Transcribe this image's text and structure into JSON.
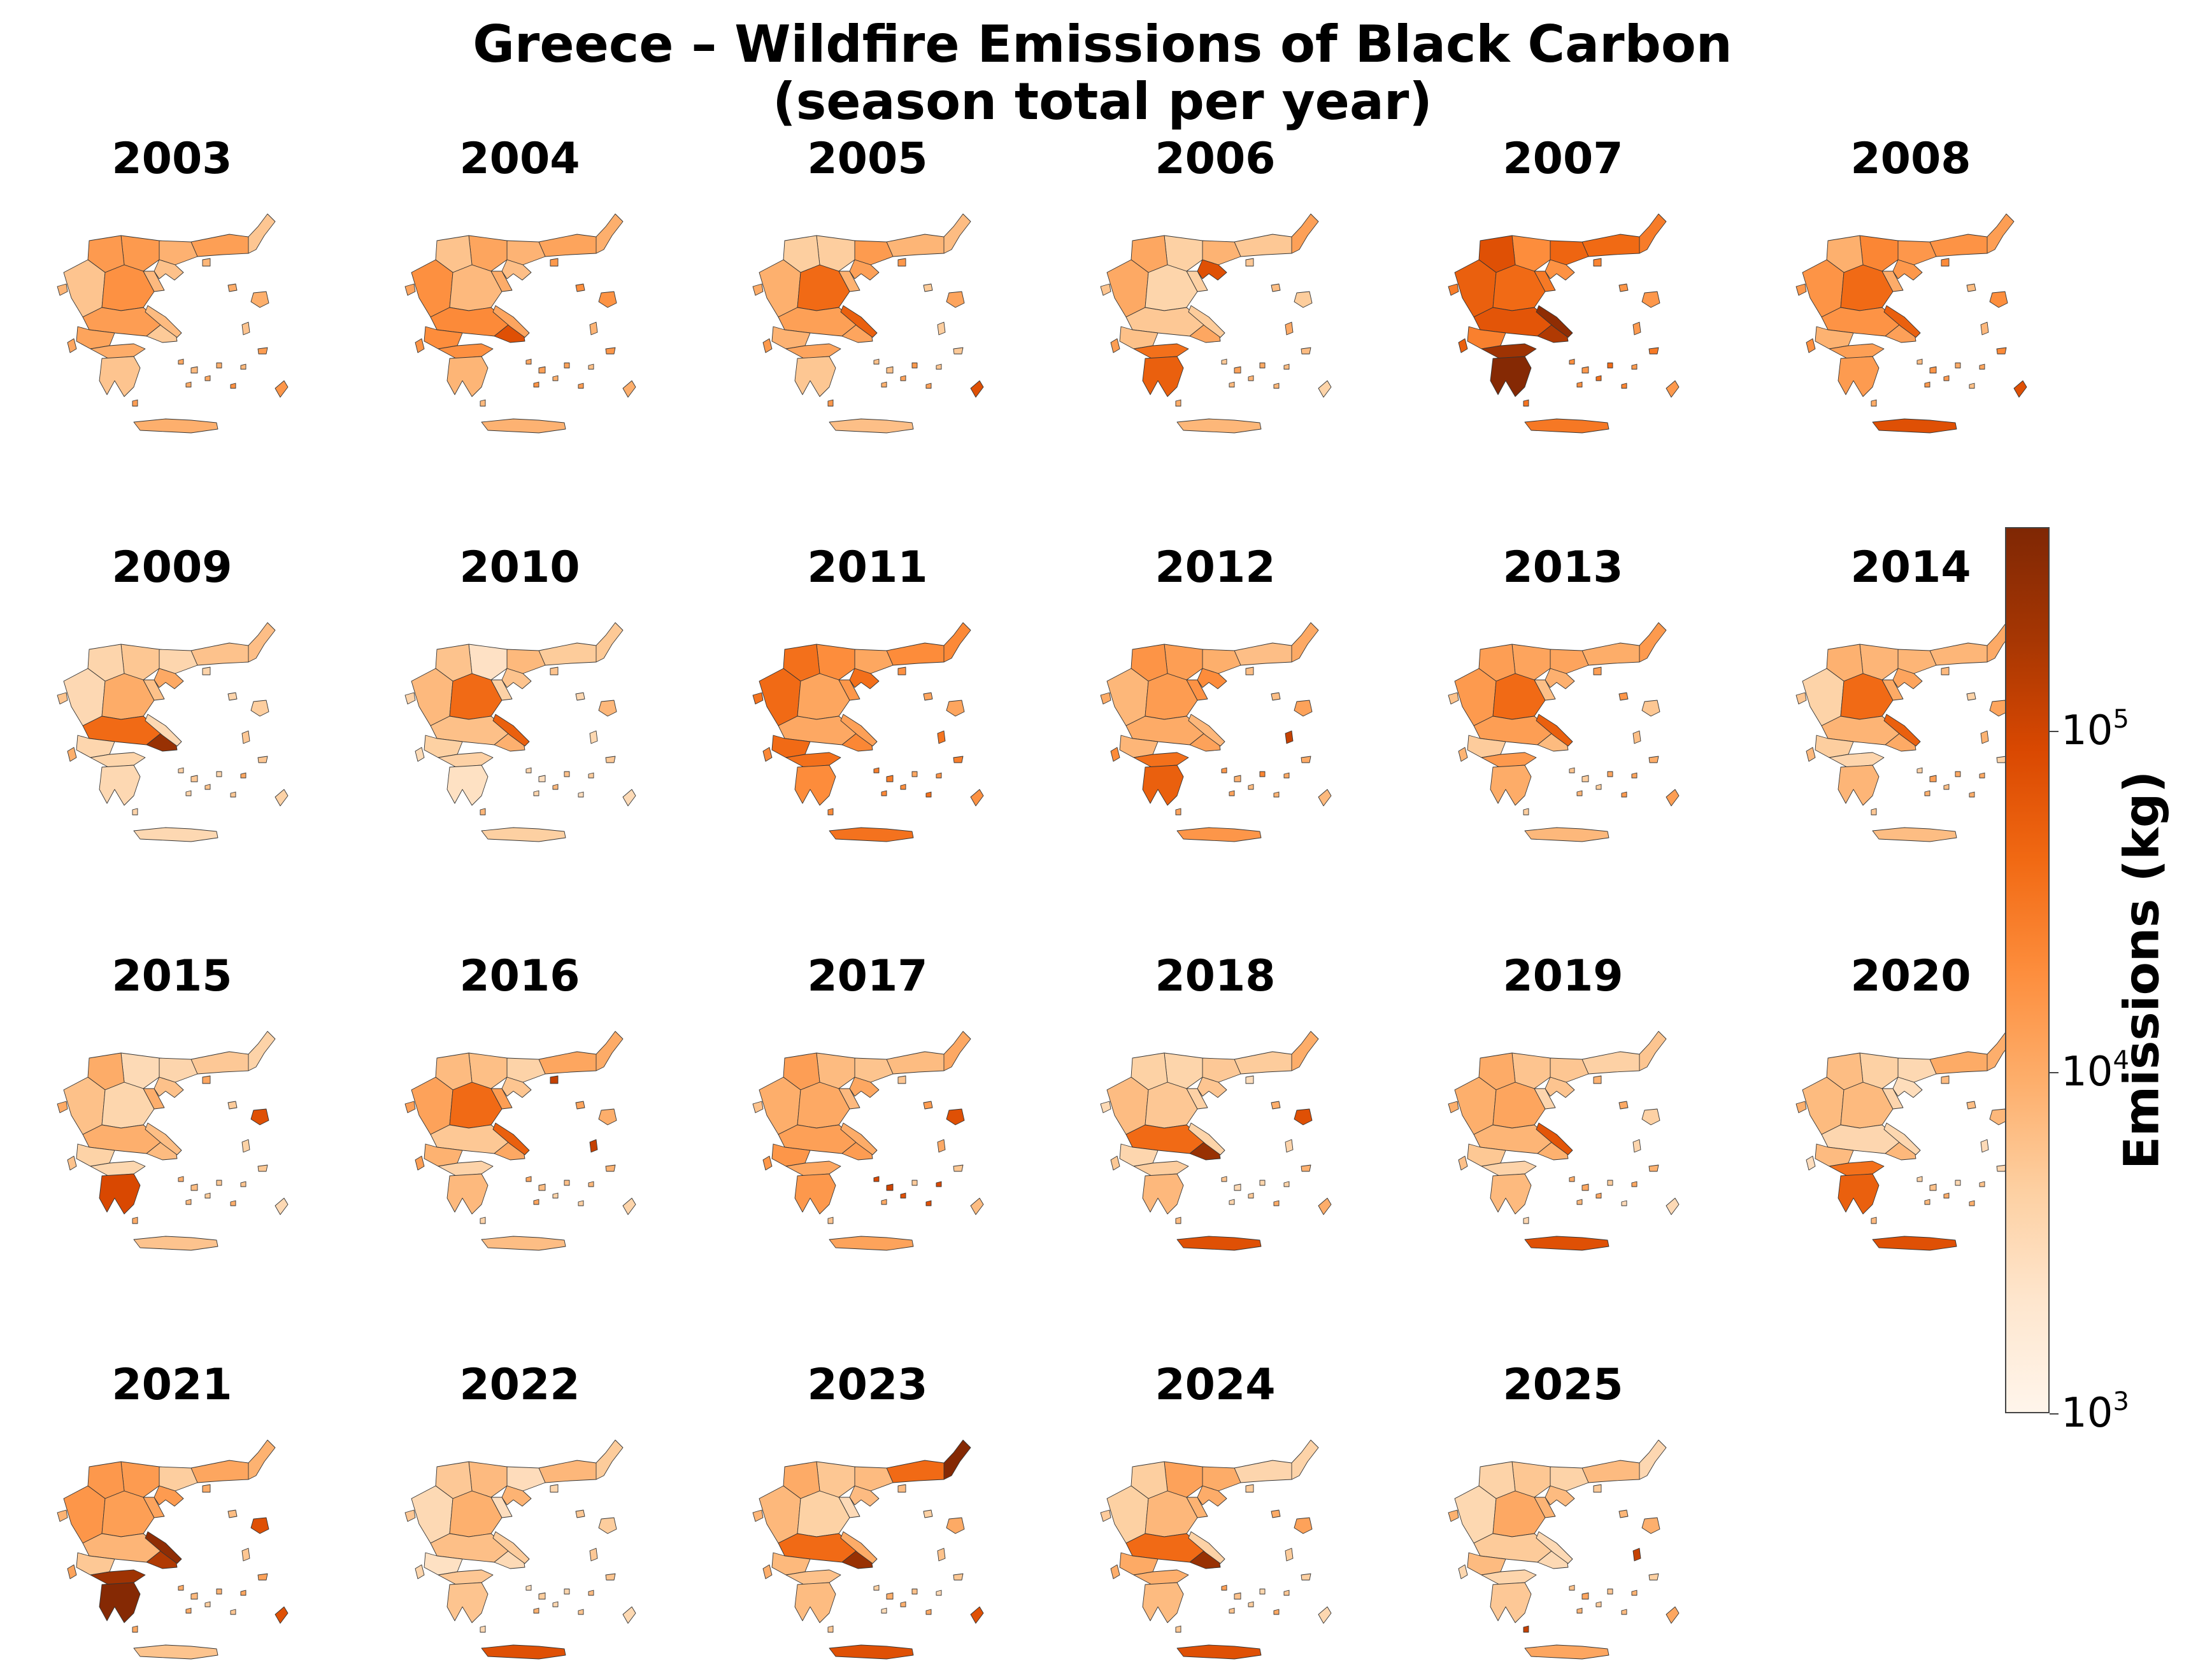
{
  "title_line1": "Greece – Wildfire Emissions of Black Carbon",
  "title_line2": "(season total per year)",
  "colorbar": {
    "label": "Emissions (kg)",
    "scale": "log",
    "range": [
      1000,
      400000
    ],
    "ticks": [
      {
        "value": 1000,
        "base": "10",
        "exponent": "3"
      },
      {
        "value": 10000,
        "base": "10",
        "exponent": "4"
      },
      {
        "value": 100000,
        "base": "10",
        "exponent": "5"
      }
    ],
    "colormap": [
      "#fff5eb",
      "#fee6ce",
      "#fdd0a2",
      "#fdae6b",
      "#fd8d3c",
      "#f16913",
      "#d94801",
      "#a63603",
      "#7f2704"
    ],
    "colormap_name": "reds/oranges (light cream to dark red)"
  },
  "panels": [
    {
      "year": "2003",
      "level": 0.38,
      "hot": []
    },
    {
      "year": "2004",
      "level": 0.4,
      "hot": [
        "attica"
      ]
    },
    {
      "year": "2005",
      "level": 0.36,
      "hot": [
        "central",
        "rhodes"
      ]
    },
    {
      "year": "2006",
      "level": 0.33,
      "hot": [
        "pelop",
        "chalk"
      ]
    },
    {
      "year": "2007",
      "level": 0.55,
      "hot": [
        "pelop_dark",
        "euboea_dark",
        "west_red"
      ]
    },
    {
      "year": "2008",
      "level": 0.42,
      "hot": [
        "central",
        "rhodes",
        "crete"
      ]
    },
    {
      "year": "2009",
      "level": 0.3,
      "hot": [
        "attica_dark"
      ]
    },
    {
      "year": "2010",
      "level": 0.26,
      "hot": [
        "central"
      ]
    },
    {
      "year": "2011",
      "level": 0.5,
      "hot": [
        "west"
      ]
    },
    {
      "year": "2012",
      "level": 0.42,
      "hot": [
        "chios",
        "pelop"
      ]
    },
    {
      "year": "2013",
      "level": 0.36,
      "hot": [
        "central"
      ]
    },
    {
      "year": "2014",
      "level": 0.32,
      "hot": [
        "central"
      ]
    },
    {
      "year": "2015",
      "level": 0.3,
      "hot": [
        "pelop_south",
        "lesvos"
      ]
    },
    {
      "year": "2016",
      "level": 0.33,
      "hot": [
        "chios",
        "thasos",
        "central"
      ]
    },
    {
      "year": "2017",
      "level": 0.36,
      "hot": [
        "islands",
        "lesvos"
      ]
    },
    {
      "year": "2018",
      "level": 0.28,
      "hot": [
        "attica_dark",
        "crete",
        "lesvos"
      ]
    },
    {
      "year": "2019",
      "level": 0.3,
      "hot": [
        "euboea",
        "crete"
      ]
    },
    {
      "year": "2020",
      "level": 0.28,
      "hot": [
        "crete",
        "pelop"
      ]
    },
    {
      "year": "2021",
      "level": 0.36,
      "hot": [
        "pelop_dark",
        "euboea_dark",
        "rhodes",
        "lesvos"
      ]
    },
    {
      "year": "2022",
      "level": 0.26,
      "hot": [
        "crete"
      ]
    },
    {
      "year": "2023",
      "level": 0.3,
      "hot": [
        "evros_dark",
        "attica_dark",
        "rhodes",
        "crete"
      ]
    },
    {
      "year": "2024",
      "level": 0.32,
      "hot": [
        "attica_dark",
        "crete"
      ]
    },
    {
      "year": "2025",
      "level": 0.3,
      "hot": [
        "chios",
        "kythira"
      ]
    }
  ]
}
